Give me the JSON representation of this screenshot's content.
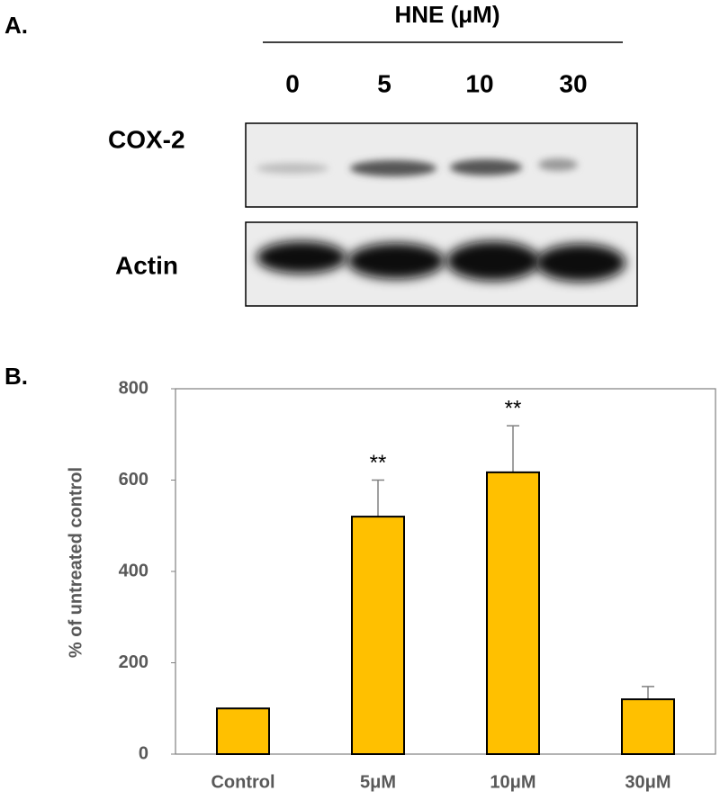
{
  "panel_a": {
    "label": "A.",
    "treatment": "HNE (μM)",
    "lanes": [
      "0",
      "5",
      "10",
      "30"
    ],
    "rows": [
      "COX-2",
      "Actin"
    ]
  },
  "chart_data": {
    "type": "bar",
    "panel_label": "B.",
    "y_label": "% of untreated control",
    "categories": [
      "Control",
      "5μM",
      "10μM",
      "30μM"
    ],
    "values": [
      100,
      520,
      617,
      120
    ],
    "errors": [
      0,
      80,
      102,
      28
    ],
    "annotations": [
      null,
      "**",
      "**",
      null
    ],
    "color": "#ffc000",
    "ylim": [
      0,
      800
    ],
    "yticks": [
      0,
      200,
      400,
      600,
      800
    ]
  }
}
